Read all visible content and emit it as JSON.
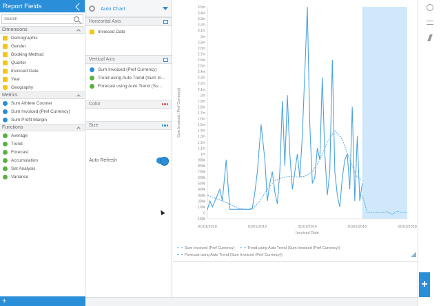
{
  "left_panel": {
    "title": "Report Fields",
    "search_placeholder": "Search",
    "dimensions": {
      "label": "Dimensions",
      "items": [
        {
          "label": "Demographic",
          "icon": "folder-icon"
        },
        {
          "label": "Gender",
          "icon": "folder-icon"
        },
        {
          "label": "Booking Method",
          "icon": "folder-icon"
        },
        {
          "label": "Quarter",
          "icon": "folder-icon"
        },
        {
          "label": "Invoiced Date",
          "icon": "folder-icon"
        },
        {
          "label": "Year",
          "icon": "folder-icon"
        },
        {
          "label": "Geography",
          "icon": "shield-icon"
        }
      ]
    },
    "metrics": {
      "label": "Metrics",
      "items": [
        {
          "label": "Sum Athlete Counter"
        },
        {
          "label": "Sum Invoiced (Pref Currency)"
        },
        {
          "label": "Sum Profit Margin"
        }
      ]
    },
    "functions": {
      "label": "Functions",
      "items": [
        {
          "label": "Average"
        },
        {
          "label": "Trend"
        },
        {
          "label": "Forecast"
        },
        {
          "label": "Accumulation"
        },
        {
          "label": "Set Analysis"
        },
        {
          "label": "Variance"
        }
      ]
    },
    "footer_add": "+"
  },
  "config_panel": {
    "chart_type": "Auto Chart",
    "horizontal_axis": {
      "label": "Horizontal Axis",
      "items": [
        "Invoiced Date"
      ]
    },
    "vertical_axis": {
      "label": "Vertical Axis",
      "items": [
        "Sum Invoiced (Pref Currency)",
        "Trend using Auto Trend (Sum In...",
        "Forecast using Auto Trend (Su..."
      ]
    },
    "color_label": "Color",
    "size_label": "Size",
    "auto_refresh_label": "Auto Refresh",
    "auto_refresh_on": true
  },
  "chart_data": {
    "type": "line",
    "xlabel": "Invoiced Date",
    "ylabel": "Sum Invoiced (Pref Currency)",
    "ylim": [
      -100000,
      3500000
    ],
    "y_ticks": [
      "-100k",
      "0",
      "100k",
      "200k",
      "300k",
      "400k",
      "500k",
      "600k",
      "700k",
      "800k",
      "900k",
      "1m",
      "1.1m",
      "1.2m",
      "1.3m",
      "1.4m",
      "1.5m",
      "1.6m",
      "1.7m",
      "1.8m",
      "1.9m",
      "2m",
      "2.1m",
      "2.2m",
      "2.3m",
      "2.4m",
      "2.5m",
      "2.6m",
      "2.7m",
      "2.8m",
      "2.9m",
      "3m",
      "3.1m",
      "3.2m",
      "3.3m",
      "3.4m",
      "3.5m"
    ],
    "x_ticks": [
      "01/01/2010",
      "01/01/2012",
      "01/01/2014",
      "01/01/2016",
      "01/01/2018"
    ],
    "x_range": [
      2010,
      2018
    ],
    "series": [
      {
        "name": "Sum Invoiced (Pref Currency)",
        "style": "solid",
        "x": [
          2010.0,
          2010.1,
          2010.2,
          2010.35,
          2010.5,
          2010.6,
          2010.75,
          2010.9,
          2011.0,
          2011.1,
          2011.2,
          2011.3,
          2011.4,
          2011.5,
          2011.6,
          2011.7,
          2011.8,
          2011.9,
          2012.0,
          2012.15,
          2012.3,
          2012.4,
          2012.5,
          2012.6,
          2012.7,
          2012.8,
          2012.9,
          2013.0,
          2013.1,
          2013.2,
          2013.3,
          2013.4,
          2013.5,
          2013.6,
          2013.7,
          2013.8,
          2013.9,
          2014.0,
          2014.1,
          2014.2,
          2014.3,
          2014.4,
          2014.5,
          2014.6,
          2014.7,
          2014.8,
          2014.9,
          2015.0,
          2015.1,
          2015.2,
          2015.3,
          2015.4,
          2015.5,
          2015.6,
          2015.7,
          2015.8,
          2015.9,
          2016.0,
          2016.1,
          2016.2
        ],
        "values": [
          50000,
          200000,
          100000,
          250000,
          400000,
          200000,
          900000,
          60000,
          60000,
          60000,
          60000,
          60000,
          60000,
          60000,
          60000,
          60000,
          80000,
          350000,
          700000,
          1500000,
          900000,
          200000,
          500000,
          700000,
          350000,
          150000,
          700000,
          1900000,
          800000,
          2000000,
          1000000,
          400000,
          700000,
          1000000,
          600000,
          1300000,
          2400000,
          3500000,
          1500000,
          500000,
          600000,
          1100000,
          900000,
          2300000,
          1000000,
          300000,
          700000,
          2600000,
          700000,
          300000,
          100000,
          600000,
          900000,
          1000000,
          400000,
          1800000,
          200000,
          1300000,
          200000,
          500000
        ]
      },
      {
        "name": "Trend using Auto Trend (Sum Invoiced (Pref Currency))",
        "style": "dashed",
        "x": [
          2010.0,
          2010.3,
          2010.6,
          2010.9,
          2011.2,
          2011.5,
          2011.8,
          2012.1,
          2012.4,
          2012.7,
          2013.0,
          2013.3,
          2013.6,
          2013.9,
          2014.2,
          2014.5,
          2014.8,
          2015.1,
          2015.4,
          2015.7,
          2016.0,
          2016.2
        ],
        "values": [
          300000,
          250000,
          200000,
          150000,
          80000,
          60000,
          60000,
          200000,
          400000,
          550000,
          600000,
          620000,
          610000,
          620000,
          700000,
          900000,
          1200000,
          1400000,
          1250000,
          900000,
          600000,
          550000
        ]
      },
      {
        "name": "Forecast using Auto Trend (Sum Invoiced (Pref Currency))",
        "style": "dashed",
        "x": [
          2016.2,
          2016.4,
          2016.6,
          2016.8,
          2017.0,
          2017.2,
          2017.4,
          2017.6,
          2017.8,
          2018.0
        ],
        "values": [
          300000,
          0,
          0,
          0,
          0,
          20000,
          -30000,
          30000,
          0,
          0
        ]
      }
    ],
    "forecast_band": {
      "x_start": 2016.2,
      "x_end": 2018.0,
      "color": "#cfe8fa"
    }
  },
  "legend": [
    "Sum Invoiced (Pref Currency)",
    "Trend using Auto Trend (Sum Invoiced (Pref Currency))",
    "Forecast using Auto Trend (Sum Invoiced (Pref Currency))"
  ],
  "right_bar": {
    "buttons": [
      "clock-icon",
      "lines-icon",
      "bolt-icon"
    ],
    "add": "+"
  },
  "colors": {
    "accent": "#2a8fd8",
    "line": "#4aa3df"
  }
}
